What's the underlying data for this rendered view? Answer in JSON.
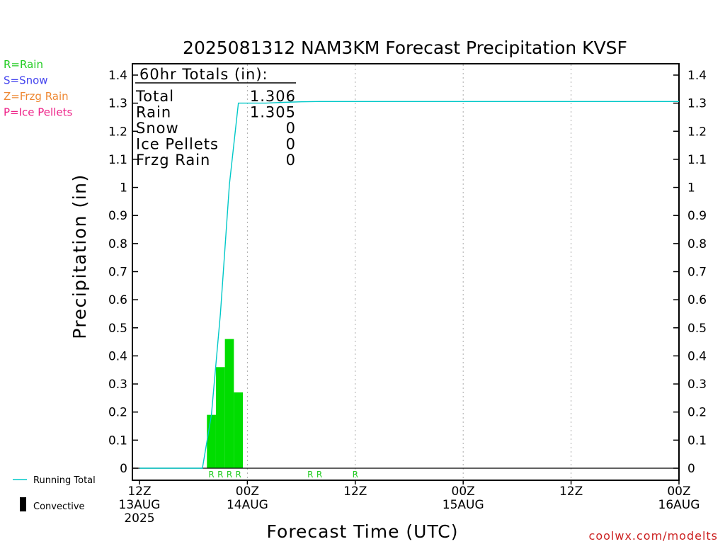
{
  "title": "2025081312 NAM3KM Forecast Precipitation KVSF",
  "ylabel": "Precipitation (in)",
  "xlabel": "Forecast Time (UTC)",
  "credit": "coolwx.com/modelts",
  "ptype_key": [
    {
      "label": "R=Rain",
      "color": "#22cc22"
    },
    {
      "label": "S=Snow",
      "color": "#4444ee"
    },
    {
      "label": "Z=Frzg Rain",
      "color": "#ee8833"
    },
    {
      "label": "P=Ice Pellets",
      "color": "#ee2288"
    }
  ],
  "legend": {
    "running_total": "Running Total",
    "convective": "Convective"
  },
  "totals": {
    "header": "60hr Totals (in):",
    "rows": [
      {
        "label": "Total",
        "value": "1.306"
      },
      {
        "label": "Rain",
        "value": "1.305"
      },
      {
        "label": "Snow",
        "value": "0"
      },
      {
        "label": "Ice Pellets",
        "value": "0"
      },
      {
        "label": "Frzg Rain",
        "value": "0"
      }
    ]
  },
  "colors": {
    "bars": "#00dd00",
    "running_total": "#00c8c8",
    "ptype_marker": "#22cc22",
    "grid": "#aaaaaa",
    "credit": "#cc2222"
  },
  "chart_data": {
    "type": "bar",
    "x_unit": "forecast hour from 2025-08-13 12Z",
    "xlim": [
      0,
      60
    ],
    "ylim": [
      0,
      1.4
    ],
    "y_ticks": [
      0,
      0.1,
      0.2,
      0.3,
      0.4,
      0.5,
      0.6,
      0.7,
      0.8,
      0.9,
      1,
      1.1,
      1.2,
      1.3,
      1.4
    ],
    "x_ticks": [
      {
        "hour": 0,
        "lines": [
          "12Z",
          "13AUG",
          "2025"
        ]
      },
      {
        "hour": 12,
        "lines": [
          "00Z",
          "14AUG"
        ]
      },
      {
        "hour": 24,
        "lines": [
          "12Z"
        ]
      },
      {
        "hour": 36,
        "lines": [
          "00Z",
          "15AUG"
        ]
      },
      {
        "hour": 48,
        "lines": [
          "12Z"
        ]
      },
      {
        "hour": 60,
        "lines": [
          "00Z",
          "16AUG"
        ]
      }
    ],
    "grid_hours": [
      12,
      24,
      36,
      48
    ],
    "bars": [
      {
        "start": 7.5,
        "end": 8.5,
        "value": 0.19
      },
      {
        "start": 8.5,
        "end": 9.5,
        "value": 0.36
      },
      {
        "start": 9.5,
        "end": 10.5,
        "value": 0.46
      },
      {
        "start": 10.5,
        "end": 11.5,
        "value": 0.27
      }
    ],
    "running_total": {
      "name": "Running Total",
      "x": [
        0,
        7,
        8,
        9,
        10,
        11,
        12,
        14,
        16,
        18,
        20,
        24,
        60
      ],
      "y": [
        0,
        0,
        0.19,
        0.55,
        1.01,
        1.3,
        1.3,
        1.3,
        1.303,
        1.305,
        1.306,
        1.306,
        1.306
      ]
    },
    "ptype_markers": [
      {
        "hour": 8,
        "type": "R"
      },
      {
        "hour": 9,
        "type": "R"
      },
      {
        "hour": 10,
        "type": "R"
      },
      {
        "hour": 11,
        "type": "R"
      },
      {
        "hour": 19,
        "type": "R"
      },
      {
        "hour": 20,
        "type": "R"
      },
      {
        "hour": 24,
        "type": "R"
      }
    ]
  }
}
